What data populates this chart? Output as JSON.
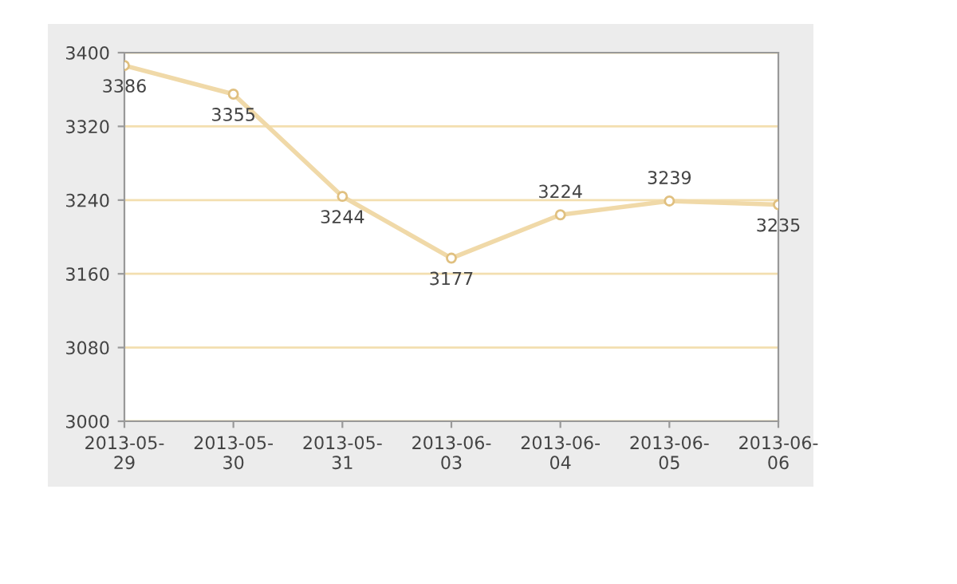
{
  "chart_data": {
    "type": "line",
    "categories": [
      "2013-05-\n29",
      "2013-05-\n30",
      "2013-05-\n31",
      "2013-06-\n03",
      "2013-06-\n04",
      "2013-06-\n05",
      "2013-06-\n06"
    ],
    "series": [
      {
        "color": "#f0d9a8",
        "values": [
          3386,
          3355,
          3244,
          3177,
          3224,
          3239,
          3235
        ]
      }
    ],
    "ylim": [
      3000,
      3400
    ],
    "yticks": [
      3000,
      3080,
      3160,
      3240,
      3320,
      3400
    ],
    "grid": "y",
    "marker": "circle",
    "line_style": "solid",
    "data_labels": true,
    "legend": false
  }
}
